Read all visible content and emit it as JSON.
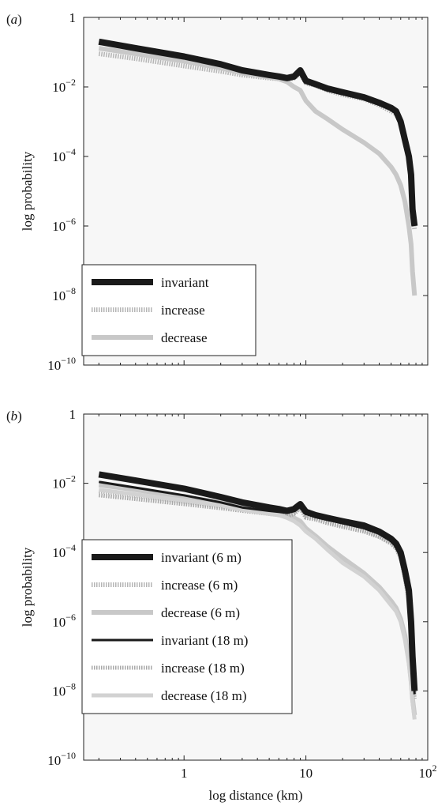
{
  "chart_data": [
    {
      "panel_label": "(a)",
      "type": "line",
      "xlabel": "",
      "ylabel": "log probability",
      "xscale": "log",
      "yscale": "log",
      "xlim": [
        0.15,
        100
      ],
      "ylim": [
        1e-10,
        1
      ],
      "x_ticks": [],
      "y_ticks": [
        {
          "value": 1,
          "label": "1"
        },
        {
          "value": 0.01,
          "label": "10",
          "exp": "−2"
        },
        {
          "value": 0.0001,
          "label": "10",
          "exp": "−4"
        },
        {
          "value": 1e-06,
          "label": "10",
          "exp": "−6"
        },
        {
          "value": 1e-08,
          "label": "10",
          "exp": "−8"
        },
        {
          "value": 1e-10,
          "label": "10",
          "exp": "−10"
        }
      ],
      "legend_position": "lower-left",
      "series": [
        {
          "name": "invariant",
          "color": "#1a1a1a",
          "style": "solid",
          "width": 8,
          "x": [
            0.2,
            0.4,
            1,
            2,
            3,
            5,
            6,
            7,
            8,
            9,
            10,
            12,
            15,
            20,
            30,
            40,
            50,
            55,
            60,
            65,
            70,
            73,
            75,
            78
          ],
          "y": [
            0.2,
            0.13,
            0.075,
            0.045,
            0.03,
            0.022,
            0.02,
            0.018,
            0.02,
            0.03,
            0.015,
            0.012,
            0.009,
            0.007,
            0.005,
            0.0035,
            0.0025,
            0.002,
            0.001,
            0.0003,
            0.0001,
            3e-05,
            3e-06,
            1e-06
          ]
        },
        {
          "name": "increase",
          "color": "#b5b5b5",
          "style": "dotted",
          "width": 6,
          "x": [
            0.2,
            0.4,
            1,
            2,
            3,
            5,
            6,
            7,
            8,
            9,
            10,
            12,
            15,
            20,
            30,
            40,
            50,
            55,
            60,
            65,
            70,
            73,
            75,
            78
          ],
          "y": [
            0.09,
            0.065,
            0.04,
            0.028,
            0.022,
            0.018,
            0.017,
            0.016,
            0.018,
            0.025,
            0.013,
            0.011,
            0.008,
            0.006,
            0.0045,
            0.003,
            0.002,
            0.0017,
            0.0009,
            0.0003,
            8e-05,
            2e-05,
            2e-06,
            8e-07
          ]
        },
        {
          "name": "decrease",
          "color": "#c8c8c8",
          "style": "solid",
          "width": 6,
          "x": [
            0.2,
            0.4,
            1,
            2,
            3,
            5,
            6,
            7,
            8,
            9,
            10,
            12,
            15,
            20,
            30,
            40,
            50,
            55,
            60,
            65,
            70,
            73,
            75,
            78
          ],
          "y": [
            0.13,
            0.09,
            0.055,
            0.035,
            0.025,
            0.019,
            0.017,
            0.014,
            0.01,
            0.008,
            0.004,
            0.002,
            0.0012,
            0.0006,
            0.00025,
            0.00012,
            5e-05,
            3e-05,
            1.5e-05,
            5e-06,
            1e-06,
            3e-07,
            5e-08,
            1e-08
          ]
        }
      ]
    },
    {
      "panel_label": "(b)",
      "type": "line",
      "xlabel": "log distance (km)",
      "ylabel": "log probability",
      "xscale": "log",
      "yscale": "log",
      "xlim": [
        0.15,
        100
      ],
      "ylim": [
        1e-10,
        1
      ],
      "x_ticks": [
        {
          "value": 1,
          "label": "1"
        },
        {
          "value": 10,
          "label": "10"
        },
        {
          "value": 100,
          "label": "10",
          "exp": "2"
        }
      ],
      "y_ticks": [
        {
          "value": 1,
          "label": "1"
        },
        {
          "value": 0.01,
          "label": "10",
          "exp": "−2"
        },
        {
          "value": 0.0001,
          "label": "10",
          "exp": "−4"
        },
        {
          "value": 1e-06,
          "label": "10",
          "exp": "−6"
        },
        {
          "value": 1e-08,
          "label": "10",
          "exp": "−8"
        },
        {
          "value": 1e-10,
          "label": "10",
          "exp": "−10"
        }
      ],
      "legend_position": "lower-left",
      "series": [
        {
          "name": "invariant (6 m)",
          "color": "#1a1a1a",
          "style": "solid",
          "width": 8,
          "x": [
            0.2,
            0.4,
            1,
            2,
            3,
            5,
            6,
            7,
            8,
            9,
            10,
            12,
            15,
            20,
            30,
            40,
            50,
            55,
            60,
            65,
            70,
            73,
            75,
            78
          ],
          "y": [
            0.018,
            0.012,
            0.007,
            0.004,
            0.0028,
            0.002,
            0.0018,
            0.0016,
            0.0018,
            0.0025,
            0.0015,
            0.0012,
            0.001,
            0.0008,
            0.0006,
            0.0004,
            0.00025,
            0.00018,
            0.0001,
            3e-05,
            8e-06,
            1e-06,
            1e-07,
            1e-08
          ]
        },
        {
          "name": "increase (6 m)",
          "color": "#b5b5b5",
          "style": "dotted",
          "width": 6,
          "x": [
            0.2,
            0.4,
            1,
            2,
            3,
            5,
            6,
            7,
            8,
            9,
            10,
            12,
            15,
            20,
            30,
            40,
            50,
            55,
            60,
            65,
            70,
            73,
            75,
            78
          ],
          "y": [
            0.006,
            0.0045,
            0.003,
            0.0022,
            0.0018,
            0.0015,
            0.0014,
            0.0013,
            0.0015,
            0.0022,
            0.0012,
            0.001,
            0.0008,
            0.0006,
            0.00045,
            0.0003,
            0.0002,
            0.00015,
            8e-05,
            2e-05,
            5e-06,
            8e-07,
            8e-08,
            8e-09
          ]
        },
        {
          "name": "decrease (6 m)",
          "color": "#c8c8c8",
          "style": "solid",
          "width": 6,
          "x": [
            0.2,
            0.4,
            1,
            2,
            3,
            5,
            6,
            7,
            8,
            9,
            10,
            12,
            15,
            20,
            30,
            40,
            50,
            55,
            60,
            65,
            70,
            73,
            75,
            78
          ],
          "y": [
            0.009,
            0.0065,
            0.004,
            0.0028,
            0.002,
            0.0016,
            0.0014,
            0.0012,
            0.001,
            0.0008,
            0.0005,
            0.0003,
            0.00015,
            7e-05,
            2.5e-05,
            1e-05,
            4e-06,
            2.5e-06,
            1.2e-06,
            4e-07,
            8e-08,
            2e-08,
            6e-09,
            2e-09
          ]
        },
        {
          "name": "invariant (18 m)",
          "color": "#1a1a1a",
          "style": "solid",
          "width": 3,
          "x": [
            0.2,
            0.4,
            1,
            2,
            3,
            5,
            6,
            7,
            8,
            9,
            10,
            12,
            15,
            20,
            30,
            40,
            50,
            55,
            60,
            65,
            70,
            73,
            75,
            78
          ],
          "y": [
            0.011,
            0.0075,
            0.0045,
            0.0028,
            0.002,
            0.0016,
            0.0015,
            0.0014,
            0.0016,
            0.0022,
            0.0013,
            0.0011,
            0.0009,
            0.0007,
            0.0005,
            0.00035,
            0.00022,
            0.00016,
            9e-05,
            2.5e-05,
            6e-06,
            8e-07,
            8e-08,
            8e-09
          ]
        },
        {
          "name": "increase (18 m)",
          "color": "#a8a8a8",
          "style": "dotted",
          "width": 5,
          "x": [
            0.2,
            0.4,
            1,
            2,
            3,
            5,
            6,
            7,
            8,
            9,
            10,
            12,
            15,
            20,
            30,
            40,
            50,
            55,
            60,
            65,
            70,
            73,
            75,
            78
          ],
          "y": [
            0.0045,
            0.0035,
            0.0025,
            0.0019,
            0.0016,
            0.0013,
            0.0012,
            0.0011,
            0.0013,
            0.0019,
            0.001,
            0.0009,
            0.0007,
            0.00055,
            0.0004,
            0.00028,
            0.00018,
            0.00013,
            7e-05,
            1.8e-05,
            4e-06,
            6e-07,
            6e-08,
            6e-09
          ]
        },
        {
          "name": "decrease (18 m)",
          "color": "#d2d2d2",
          "style": "solid",
          "width": 5,
          "x": [
            0.2,
            0.4,
            1,
            2,
            3,
            5,
            6,
            7,
            8,
            9,
            10,
            12,
            15,
            20,
            30,
            40,
            50,
            55,
            60,
            65,
            70,
            73,
            75,
            78
          ],
          "y": [
            0.0065,
            0.0048,
            0.0032,
            0.0023,
            0.0017,
            0.0013,
            0.0012,
            0.001,
            0.0008,
            0.0006,
            0.0004,
            0.00025,
            0.00012,
            5e-05,
            2e-05,
            8e-06,
            3e-06,
            2e-06,
            1e-06,
            3e-07,
            6e-08,
            1.5e-08,
            5e-09,
            1.5e-09
          ]
        }
      ]
    }
  ]
}
